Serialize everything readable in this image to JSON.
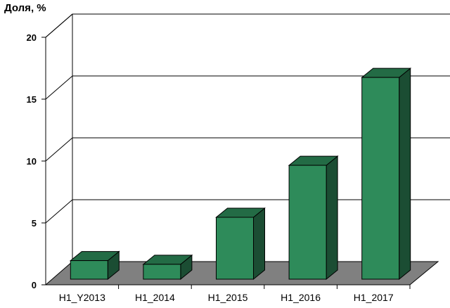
{
  "chart_data": {
    "type": "bar",
    "title": "",
    "xlabel": "",
    "ylabel": "Доля, %",
    "categories": [
      "H1_Y2013",
      "H1_2014",
      "H1_2015",
      "H1_2016",
      "H1_2017"
    ],
    "values": [
      1.5,
      1.2,
      5.0,
      9.2,
      16.3
    ],
    "ylim": [
      0,
      20
    ],
    "yticks": [
      0,
      5,
      10,
      15,
      20
    ],
    "grid": true,
    "style": "3d",
    "colors": {
      "bar_front": "#2e8b5a",
      "bar_top": "#236b45",
      "bar_side": "#1b4d33",
      "floor": "#808080"
    }
  }
}
